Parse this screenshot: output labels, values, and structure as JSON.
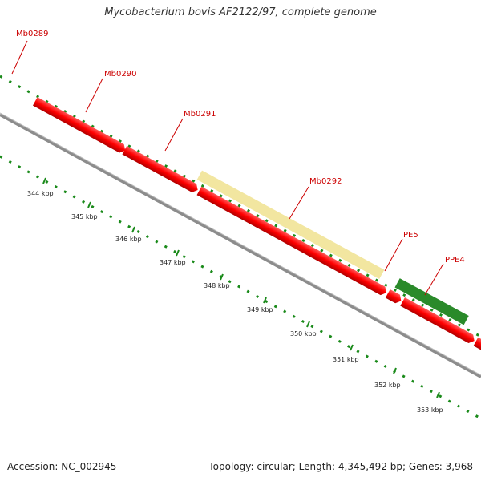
{
  "title": "Mycobacterium bovis AF2122/97, complete genome",
  "footer": {
    "accession": "Accession: NC_002945",
    "topology": "Topology: circular; Length: 4,345,492 bp; Genes: 3,968"
  },
  "colors": {
    "forward_cds": "#ff0000",
    "reverse_cds": "#ff0000",
    "gene_blue": "#000080",
    "gene_yellow": "#f2e6a0",
    "gene_green": "#2a8a2a",
    "gene_gray": "#707070",
    "label_text": "#cc0000",
    "tick": "#1a8a1a",
    "backbone": "#909090"
  },
  "gene_labels": [
    "Mb0289",
    "Mb0290",
    "Mb0291",
    "Mb0292",
    "PE5",
    "PPE4"
  ],
  "kbp_labels": [
    "344 kbp",
    "345 kbp",
    "346 kbp",
    "347 kbp",
    "348 kbp",
    "349 kbp",
    "350 kbp",
    "351 kbp",
    "352 kbp",
    "353 kbp"
  ]
}
